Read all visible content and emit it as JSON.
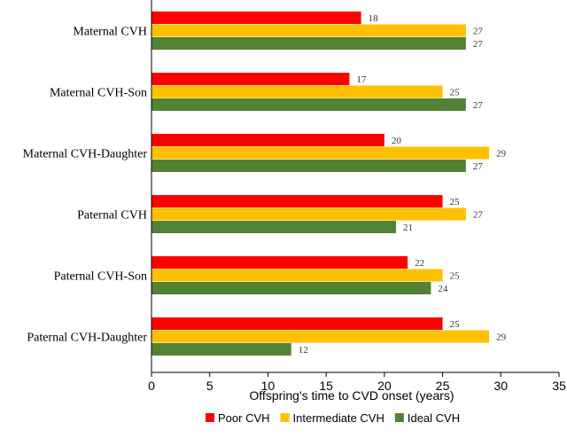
{
  "chart_data": {
    "type": "bar",
    "orientation": "horizontal",
    "title": "",
    "xlabel": "Offspring's time to CVD onset (years)",
    "ylabel": "",
    "xlim": [
      0,
      35
    ],
    "xticks": [
      0,
      5,
      10,
      15,
      20,
      25,
      30,
      35
    ],
    "grid": false,
    "legend_position": "bottom",
    "categories": [
      "Maternal CVH",
      "Maternal CVH-Son",
      "Maternal CVH-Daughter",
      "Paternal CVH",
      "Paternal CVH-Son",
      "Paternal CVH-Daughter"
    ],
    "series": [
      {
        "name": "Poor CVH",
        "color": "#ff0000",
        "values": [
          18,
          17,
          20,
          25,
          22,
          25
        ]
      },
      {
        "name": "Intermediate CVH",
        "color": "#ffc000",
        "values": [
          27,
          25,
          29,
          27,
          25,
          29
        ]
      },
      {
        "name": "Ideal CVH",
        "color": "#548235",
        "values": [
          27,
          27,
          27,
          21,
          24,
          12
        ]
      }
    ]
  }
}
